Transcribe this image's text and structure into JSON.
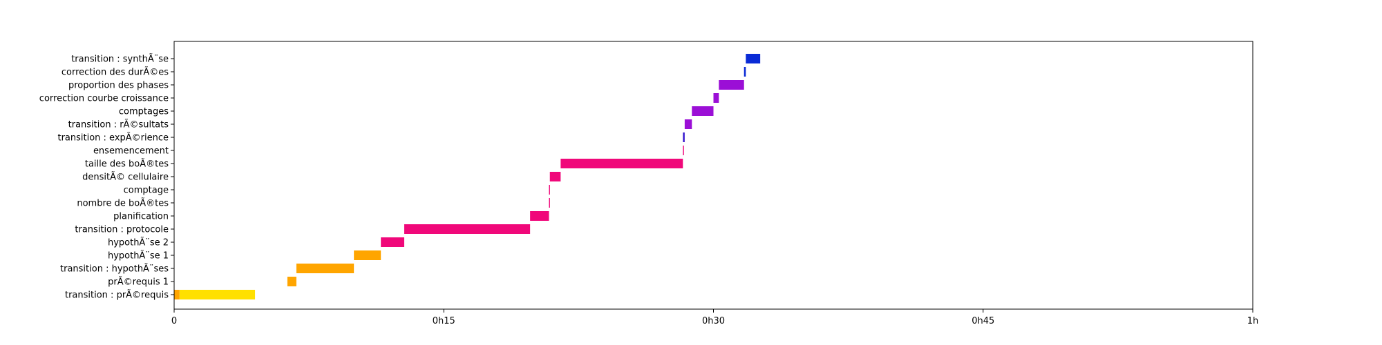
{
  "chart_data": {
    "type": "gantt",
    "xlim": [
      0,
      60
    ],
    "x_unit": "minutes",
    "x_ticks": [
      {
        "value": 0,
        "label": "0"
      },
      {
        "value": 15,
        "label": "0h15"
      },
      {
        "value": 30,
        "label": "0h30"
      },
      {
        "value": 45,
        "label": "0h45"
      },
      {
        "value": 60,
        "label": "1h"
      }
    ],
    "grid": false,
    "tasks": [
      {
        "label": "transition : synthÃ¨se",
        "start": 31.8,
        "end": 32.6,
        "color": "#0A2BD6"
      },
      {
        "label": "correction des durÃ©es",
        "start": 31.7,
        "end": 31.8,
        "color": "#0A2BD6"
      },
      {
        "label": "proportion des phases",
        "start": 30.3,
        "end": 31.7,
        "color": "#9B0FD6"
      },
      {
        "label": "correction courbe croissance",
        "start": 30.0,
        "end": 30.3,
        "color": "#9B0FD6"
      },
      {
        "label": "comptages",
        "start": 28.8,
        "end": 30.0,
        "color": "#9B0FD6"
      },
      {
        "label": "transition : rÃ©sultats",
        "start": 28.4,
        "end": 28.8,
        "color": "#9B0FD6"
      },
      {
        "label": "transition : expÃ©rience",
        "start": 28.3,
        "end": 28.4,
        "color": "#3B1FD0"
      },
      {
        "label": "ensemencement",
        "start": 28.3,
        "end": 28.3,
        "color": "#F0087A"
      },
      {
        "label": "taille des boÃ®tes",
        "start": 21.5,
        "end": 28.3,
        "color": "#F0087A"
      },
      {
        "label": "densitÃ© cellulaire",
        "start": 20.9,
        "end": 21.5,
        "color": "#F0087A"
      },
      {
        "label": "comptage",
        "start": 20.85,
        "end": 20.9,
        "color": "#F0087A"
      },
      {
        "label": "nombre de boÃ®tes",
        "start": 20.85,
        "end": 20.9,
        "color": "#F0087A"
      },
      {
        "label": "planification",
        "start": 19.8,
        "end": 20.85,
        "color": "#F0087A"
      },
      {
        "label": "transition : protocole",
        "start": 12.8,
        "end": 19.8,
        "color": "#F0087A"
      },
      {
        "label": "hypothÃ¨se 2",
        "start": 11.5,
        "end": 12.8,
        "color": "#F0087A"
      },
      {
        "label": "hypothÃ¨se 1",
        "start": 10.0,
        "end": 11.5,
        "color": "#FFA500"
      },
      {
        "label": "transition : hypothÃ¨ses",
        "start": 6.8,
        "end": 10.0,
        "color": "#FFA500"
      },
      {
        "label": "prÃ©requis 1",
        "start": 6.3,
        "end": 6.8,
        "color": "#FFA500"
      },
      {
        "label": "transition : prÃ©requis",
        "start": 0.3,
        "end": 4.5,
        "color": "#FFE000"
      }
    ],
    "extra_bars": [
      {
        "row": 18,
        "start": 0.0,
        "end": 0.3,
        "color": "#FFA500"
      }
    ]
  }
}
